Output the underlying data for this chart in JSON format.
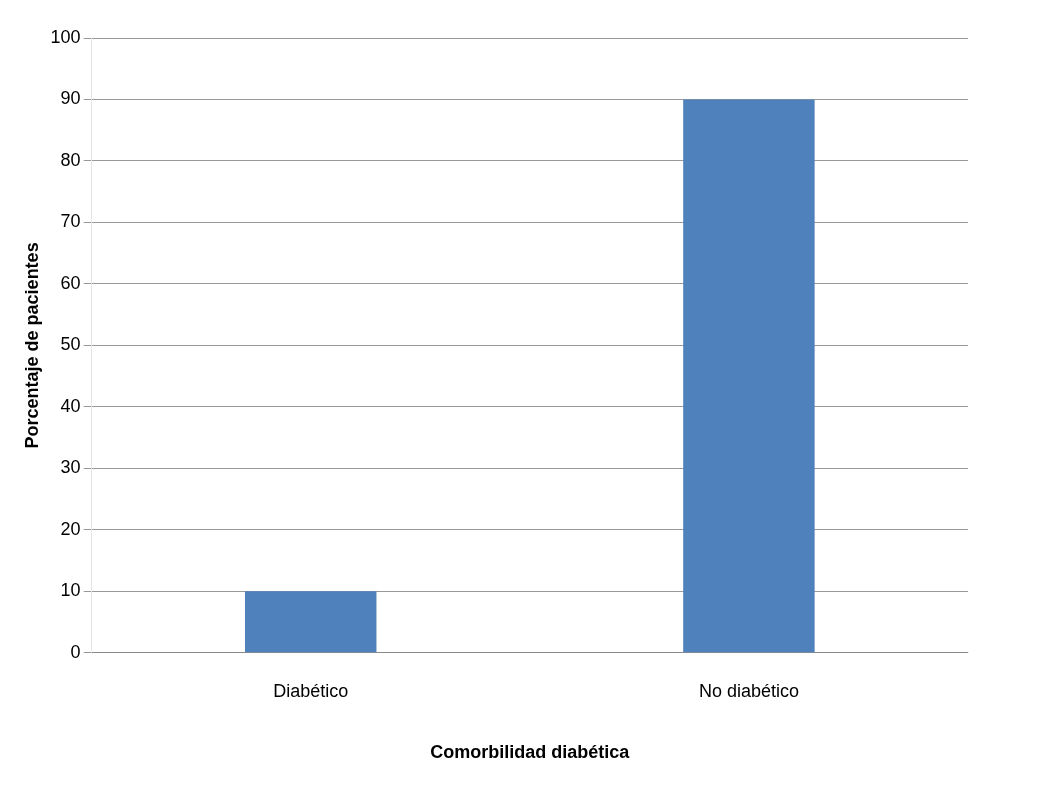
{
  "chart_data": {
    "type": "bar",
    "xlabel": "Comorbilidad diabética",
    "ylabel": "Porcentaje de pacientes",
    "categories": [
      "Diabético",
      "No diabético"
    ],
    "values": [
      10,
      90
    ],
    "color": "#4f81bd",
    "ylim": [
      0,
      100
    ],
    "yticks": [
      0,
      10,
      20,
      30,
      40,
      50,
      60,
      70,
      80,
      90,
      100
    ],
    "grid": "y",
    "legend": false
  }
}
